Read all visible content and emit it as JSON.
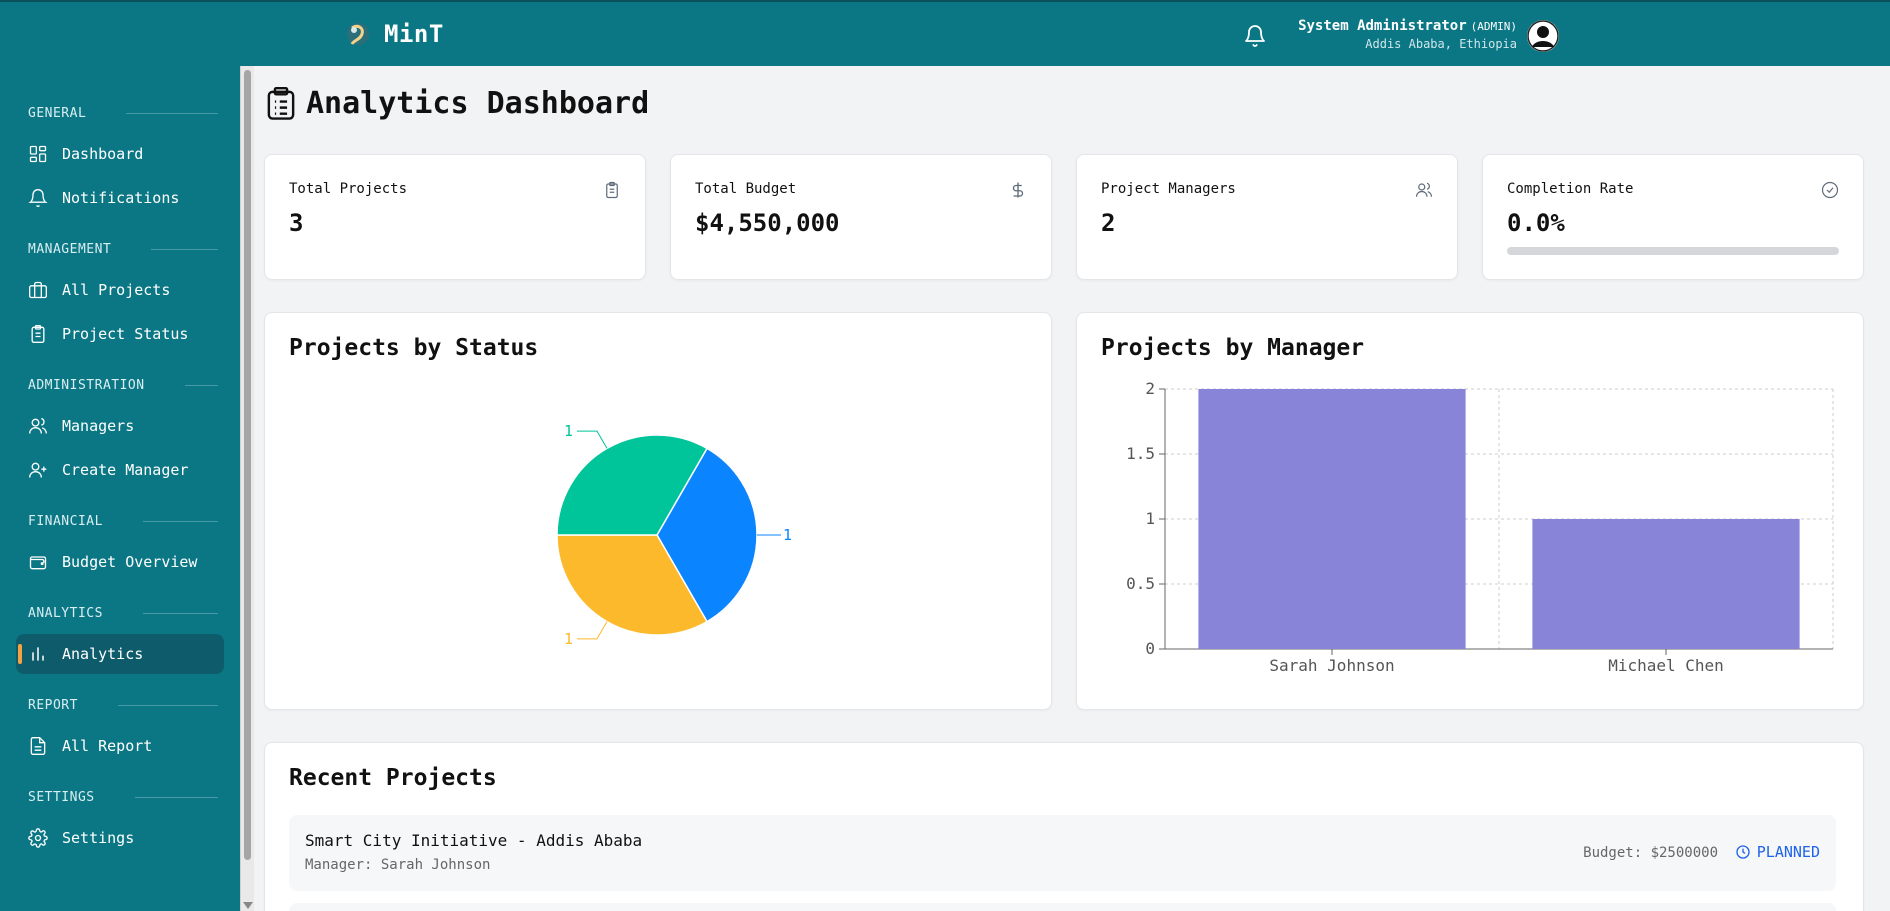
{
  "header": {
    "brand": "MinT",
    "user_name": "System Administrator",
    "user_role": "(ADMIN)",
    "user_location": "Addis Ababa, Ethiopia"
  },
  "sidebar": {
    "sections": [
      {
        "title": "GENERAL",
        "items": [
          {
            "label": "Dashboard",
            "icon": "dashboard-icon"
          },
          {
            "label": "Notifications",
            "icon": "bell-icon"
          }
        ]
      },
      {
        "title": "MANAGEMENT",
        "items": [
          {
            "label": "All Projects",
            "icon": "briefcase-icon"
          },
          {
            "label": "Project Status",
            "icon": "clipboard-icon"
          }
        ]
      },
      {
        "title": "ADMINISTRATION",
        "items": [
          {
            "label": "Managers",
            "icon": "users-icon"
          },
          {
            "label": "Create Manager",
            "icon": "user-plus-icon"
          }
        ]
      },
      {
        "title": "FINANCIAL",
        "items": [
          {
            "label": "Budget Overview",
            "icon": "wallet-icon"
          }
        ]
      },
      {
        "title": "ANALYTICS",
        "items": [
          {
            "label": "Analytics",
            "icon": "bar-chart-icon",
            "active": true
          }
        ]
      },
      {
        "title": "REPORT",
        "items": [
          {
            "label": "All Report",
            "icon": "file-icon"
          }
        ]
      },
      {
        "title": "SETTINGS",
        "items": [
          {
            "label": "Settings",
            "icon": "gear-icon"
          }
        ]
      }
    ]
  },
  "page": {
    "title": "Analytics Dashboard"
  },
  "stats": [
    {
      "label": "Total Projects",
      "value": "3",
      "icon": "clipboard-icon"
    },
    {
      "label": "Total Budget",
      "value": "$4,550,000",
      "icon": "dollar-icon"
    },
    {
      "label": "Project Managers",
      "value": "2",
      "icon": "users-icon"
    },
    {
      "label": "Completion Rate",
      "value": "0.0%",
      "icon": "check-circle-icon",
      "progress": 0.0
    }
  ],
  "panels": {
    "status_title": "Projects by Status",
    "manager_title": "Projects by Manager"
  },
  "chart_data": [
    {
      "type": "pie",
      "title": "Projects by Status",
      "slices": [
        {
          "value": 1,
          "label": "1",
          "color": "#0a84ff"
        },
        {
          "value": 1,
          "label": "1",
          "color": "#fdb92c"
        },
        {
          "value": 1,
          "label": "1",
          "color": "#00c49a"
        }
      ]
    },
    {
      "type": "bar",
      "title": "Projects by Manager",
      "categories": [
        "Sarah Johnson",
        "Michael Chen"
      ],
      "values": [
        2,
        1
      ],
      "ylim": [
        0,
        2
      ],
      "yticks": [
        "0",
        "0.5",
        "1",
        "1.5",
        "2"
      ],
      "color": "#8884d8",
      "grid": true
    }
  ],
  "recent": {
    "title": "Recent Projects",
    "items": [
      {
        "name": "Smart City Initiative - Addis Ababa",
        "manager": "Manager: Sarah Johnson",
        "budget": "Budget: $2500000",
        "status": "PLANNED"
      }
    ]
  }
}
